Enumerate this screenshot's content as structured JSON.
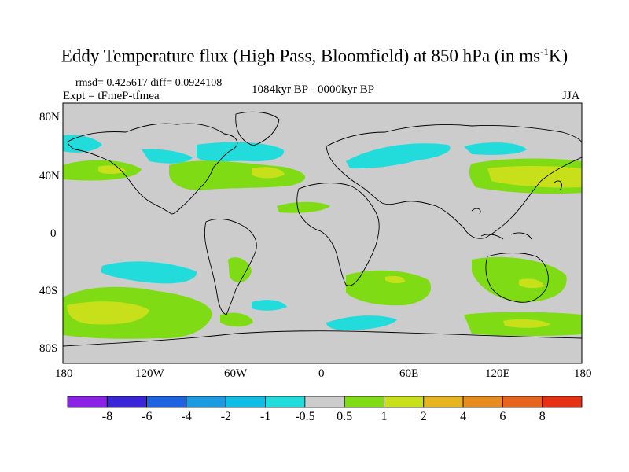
{
  "title": {
    "main": "Eddy Temperature flux (High Pass, Bloomfield) at 850 hPa (in ms",
    "sup": "-1",
    "tail": "K)"
  },
  "stats": "rmsd= 0.425617 diff= 0.0924108",
  "experiment": "Expt = tFmeP-tfmea",
  "period": "1084kyr BP - 0000kyr BP",
  "season": "JJA",
  "map": {
    "lat_ticks": [
      "80N",
      "40N",
      "0",
      "40S",
      "80S"
    ],
    "lon_ticks": [
      "180",
      "120W",
      "60W",
      "0",
      "60E",
      "120E",
      "180"
    ],
    "background_color": "#cccccc",
    "coastline_color": "#000000"
  },
  "colorbar": {
    "labels": [
      "-8",
      "-6",
      "-4",
      "-2",
      "-1",
      "-0.5",
      "0.5",
      "1",
      "2",
      "4",
      "6",
      "8"
    ],
    "colors": [
      "#8a23e6",
      "#3a26d9",
      "#1e64e0",
      "#1a9ae0",
      "#10bde6",
      "#22dcdc",
      "#cccccc",
      "#7fdc14",
      "#c8e01a",
      "#e6b41e",
      "#e68c1e",
      "#e6641e",
      "#e63214"
    ]
  }
}
